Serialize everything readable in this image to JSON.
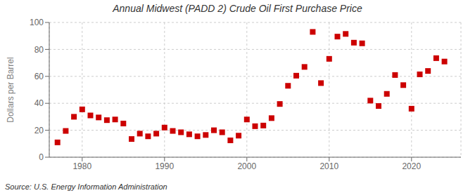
{
  "chart_data": {
    "type": "scatter",
    "title": "Annual Midwest (PADD 2) Crude Oil First Purchase Price",
    "ylabel": "Dollars per Barrel",
    "annotations": [
      "Source: U.S. Energy Information Administration"
    ],
    "x": [
      1977,
      1978,
      1979,
      1980,
      1981,
      1982,
      1983,
      1984,
      1985,
      1986,
      1987,
      1988,
      1989,
      1990,
      1991,
      1992,
      1993,
      1994,
      1995,
      1996,
      1997,
      1998,
      1999,
      2000,
      2001,
      2002,
      2003,
      2004,
      2005,
      2006,
      2007,
      2008,
      2009,
      2010,
      2011,
      2012,
      2013,
      2014,
      2015,
      2016,
      2017,
      2018,
      2019,
      2020,
      2021,
      2022,
      2023,
      2024
    ],
    "values": [
      11.0,
      19.5,
      30.0,
      35.5,
      31.0,
      29.5,
      27.5,
      28.0,
      25.0,
      13.5,
      17.5,
      15.5,
      17.5,
      22.0,
      19.5,
      18.5,
      17.0,
      15.5,
      16.5,
      20.0,
      18.5,
      12.5,
      16.0,
      28.0,
      23.0,
      23.5,
      29.0,
      39.5,
      53.0,
      60.5,
      67.0,
      93.0,
      55.0,
      73.0,
      89.5,
      91.5,
      85.0,
      84.5,
      42.0,
      38.0,
      47.0,
      61.0,
      53.5,
      36.0,
      61.5,
      64.0,
      73.5,
      71.0
    ],
    "color": "#cc0000",
    "marker": "square",
    "xlim": [
      1976,
      2026
    ],
    "ylim": [
      0,
      100
    ],
    "xticks": [
      1980,
      1990,
      2000,
      2010,
      2020
    ],
    "yticks": [
      0,
      20,
      40,
      60,
      80,
      100
    ],
    "grid": true
  }
}
